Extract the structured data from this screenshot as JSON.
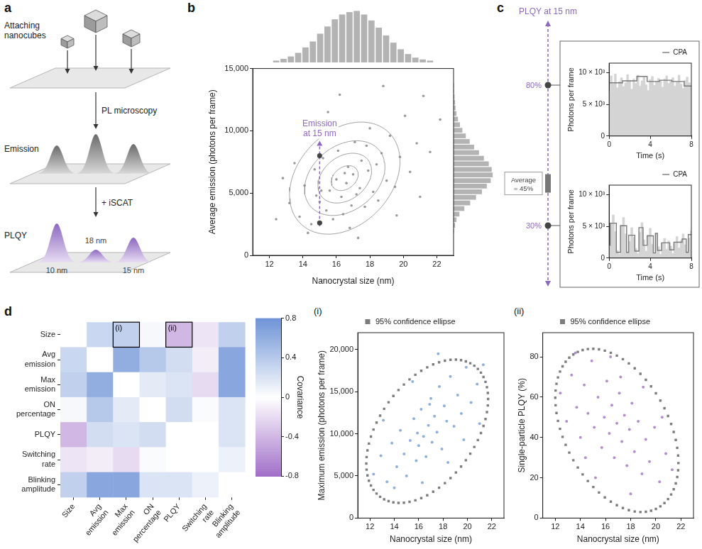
{
  "diagram": {
    "panel": "a",
    "title": "Attaching nanocubes",
    "arrows": [
      "PL microscopy",
      "+ iSCAT"
    ],
    "layers": [
      "Emission",
      "PLQY"
    ],
    "sizes": [
      "10 nm",
      "18 nm",
      "15 nm"
    ]
  },
  "chart_data": [
    {
      "panel": "b",
      "type": "scatter",
      "x_label": "Nanocrystal size (nm)",
      "y_label": "Average emission (photons per frame)",
      "xlim": [
        11,
        23
      ],
      "xticks": [
        12,
        14,
        16,
        18,
        20,
        22
      ],
      "ylim": [
        0,
        15000
      ],
      "yticks": [
        0,
        {
          "value": 5000,
          "label": "5,000"
        },
        {
          "value": 10000,
          "label": "10,000"
        },
        {
          "value": 15000,
          "label": "15,000"
        }
      ],
      "grid": false,
      "color": "#9a9a9a",
      "x": [
        13.2,
        13.8,
        14.1,
        14.5,
        14.7,
        15.0,
        15.2,
        15.4,
        15.6,
        15.8,
        16.0,
        16.1,
        16.3,
        16.4,
        16.6,
        16.7,
        16.8,
        17.0,
        17.1,
        17.2,
        17.4,
        17.5,
        17.7,
        17.9,
        18.0,
        18.2,
        18.4,
        18.5,
        18.7,
        19.0,
        19.2,
        19.5,
        19.8,
        20.1,
        20.4,
        20.8,
        21.2,
        21.6,
        12.4,
        12.8,
        13.5,
        14.0,
        14.3,
        15.5,
        16.2,
        17.3,
        18.8,
        19.6,
        21.0,
        22.2,
        15.1,
        16.9,
        17.8,
        14.8,
        16.5
      ],
      "values": [
        4200,
        3100,
        5600,
        2500,
        6900,
        4300,
        7800,
        3600,
        5200,
        2900,
        6100,
        8400,
        4700,
        3300,
        5800,
        7100,
        2200,
        6500,
        9100,
        4900,
        5400,
        7600,
        3900,
        6800,
        10200,
        5100,
        7300,
        4400,
        8200,
        6000,
        9600,
        5500,
        7900,
        11200,
        6700,
        9000,
        12800,
        8300,
        2900,
        6200,
        7400,
        9800,
        1800,
        11500,
        12900,
        1400,
        13600,
        3200,
        4700,
        10900,
        5200,
        4000,
        8800,
        4800,
        6600
      ],
      "contours": [
        {
          "cx": 16.5,
          "cy": 6200,
          "rx": 0.8,
          "ry": 1000,
          "rho": 0.3
        },
        {
          "cx": 16.5,
          "cy": 6200,
          "rx": 1.6,
          "ry": 2000,
          "rho": 0.3
        },
        {
          "cx": 16.5,
          "cy": 6200,
          "rx": 2.4,
          "ry": 3000,
          "rho": 0.3
        },
        {
          "cx": 16.5,
          "cy": 6200,
          "rx": 3.3,
          "ry": 4500,
          "rho": 0.3
        }
      ],
      "x_histogram": {
        "bins": [
          11.5,
          12,
          12.5,
          13,
          13.5,
          14,
          14.5,
          15,
          15.5,
          16,
          16.5,
          17,
          17.5,
          18,
          18.5,
          19,
          19.5,
          20,
          20.5,
          21,
          21.5,
          22,
          22.5
        ],
        "counts": [
          3,
          6,
          10,
          16,
          25,
          35,
          48,
          60,
          72,
          80,
          84,
          86,
          80,
          70,
          58,
          45,
          33,
          22,
          14,
          8,
          5,
          3
        ],
        "ylim": [
          0,
          90
        ],
        "tick_labels": false,
        "color": "#b3b3b3"
      },
      "y_histogram": {
        "bins": [
          0,
          500,
          1000,
          1500,
          2000,
          2500,
          3000,
          3500,
          4000,
          4500,
          5000,
          5500,
          6000,
          6500,
          7000,
          7500,
          8000,
          8500,
          9000,
          9500,
          10000,
          10500,
          11000,
          11500,
          12000,
          12500,
          13000,
          13500,
          14000,
          14500,
          15000
        ],
        "counts": [
          0,
          0,
          1,
          3,
          6,
          12,
          22,
          34,
          46,
          58,
          68,
          76,
          80,
          78,
          72,
          62,
          52,
          42,
          33,
          25,
          18,
          13,
          9,
          6,
          4,
          3,
          2,
          1,
          1,
          0
        ],
        "xlim": [
          0,
          90
        ],
        "tick_labels": false,
        "color": "#b3b3b3"
      },
      "annotation": {
        "text": "Emission at 15 nm",
        "x": 15,
        "y_range": [
          2300,
          9200
        ],
        "points": [
          8000,
          2600
        ],
        "color": "#8d67c0"
      }
    },
    {
      "panel": "c",
      "type": "line",
      "x_label": "Time (s)",
      "y_label": "Photons per frame",
      "xlim": [
        0,
        8
      ],
      "xticks": [
        0,
        4,
        8
      ],
      "ylim": [
        0,
        11500
      ],
      "yticks": [
        0,
        {
          "value": 5000,
          "label": "5 × 10³"
        },
        {
          "value": 10000,
          "label": "10 × 10³"
        }
      ],
      "grid": false,
      "legend": "top right",
      "x": [
        0,
        0.2,
        0.4,
        0.6,
        0.8,
        1,
        1.2,
        1.4,
        1.6,
        1.8,
        2,
        2.2,
        2.4,
        2.6,
        2.8,
        3,
        3.2,
        3.4,
        3.6,
        3.8,
        4,
        4.2,
        4.4,
        4.6,
        4.8,
        5,
        5.2,
        5.4,
        5.6,
        5.8,
        6,
        6.2,
        6.4,
        6.6,
        6.8,
        7,
        7.2,
        7.4,
        7.6,
        7.8,
        8
      ],
      "series": [
        {
          "type": "area",
          "line_style": "step",
          "color": "#d4d4d4",
          "values": [
            7000,
            9500,
            8200,
            9800,
            7600,
            8600,
            9200,
            7800,
            8400,
            9700,
            8800,
            7400,
            9000,
            8300,
            9600,
            7900,
            8700,
            9300,
            8100,
            7200,
            8900,
            9400,
            8000,
            8600,
            9100,
            8800,
            7700,
            9000,
            9500,
            8300,
            8700,
            9200,
            7900,
            8500,
            9600,
            8200,
            7500,
            8800,
            9300,
            8400,
            7800
          ]
        },
        {
          "name": "CPA",
          "type": "line",
          "line_style": "step",
          "color": "#7a7a7a",
          "values": [
            8400,
            8400,
            8400,
            8400,
            8400,
            8400,
            8400,
            8700,
            8700,
            8700,
            8700,
            8700,
            8700,
            8700,
            9400,
            9400,
            9400,
            9400,
            9400,
            8600,
            8600,
            8600,
            8600,
            8600,
            8600,
            8800,
            8800,
            8800,
            8800,
            8800,
            8800,
            8600,
            8600,
            8600,
            8600,
            8600,
            8600,
            7900,
            7900,
            7900,
            7900
          ]
        }
      ],
      "plqy_scale": {
        "title": "PLQY at 15 nm",
        "color": "#8d67c0",
        "marks": [
          {
            "value": 80,
            "label": "80%"
          },
          {
            "value": 45,
            "label": "Average = 45%"
          },
          {
            "value": 30,
            "label": "30%"
          }
        ]
      }
    },
    {
      "type": "line",
      "x_label": "Time (s)",
      "y_label": "Photons per frame",
      "xlim": [
        0,
        8
      ],
      "xticks": [
        0,
        4,
        8
      ],
      "ylim": [
        0,
        11500
      ],
      "yticks": [
        0,
        {
          "value": 5000,
          "label": "5 × 10³"
        },
        {
          "value": 10000,
          "label": "10 × 10³"
        }
      ],
      "grid": false,
      "legend": "top right",
      "x": [
        0,
        0.2,
        0.4,
        0.6,
        0.8,
        1,
        1.2,
        1.4,
        1.6,
        1.8,
        2,
        2.2,
        2.4,
        2.6,
        2.8,
        3,
        3.2,
        3.4,
        3.6,
        3.8,
        4,
        4.2,
        4.4,
        4.6,
        4.8,
        5,
        5.2,
        5.4,
        5.6,
        5.8,
        6,
        6.2,
        6.4,
        6.6,
        6.8,
        7,
        7.2,
        7.4,
        7.6,
        7.8,
        8
      ],
      "series": [
        {
          "type": "area",
          "line_style": "step",
          "color": "#d4d4d4",
          "values": [
            2000,
            5500,
            6800,
            4200,
            1200,
            600,
            5200,
            6400,
            3800,
            900,
            2600,
            4800,
            3300,
            1500,
            700,
            4100,
            5600,
            2900,
            1100,
            3600,
            4700,
            2200,
            800,
            3900,
            1800,
            600,
            2400,
            3100,
            1400,
            2700,
            1900,
            700,
            2300,
            3400,
            1600,
            2800,
            3800,
            2100,
            900,
            3200,
            4300
          ]
        },
        {
          "name": "CPA",
          "type": "line",
          "line_style": "step",
          "color": "#7a7a7a",
          "values": [
            2000,
            5500,
            5500,
            5500,
            900,
            900,
            5100,
            5100,
            5100,
            900,
            3600,
            3600,
            3600,
            1100,
            1100,
            4800,
            4800,
            2000,
            2000,
            3500,
            3500,
            3500,
            800,
            3900,
            1200,
            1200,
            2400,
            2400,
            2400,
            2400,
            1300,
            1300,
            2500,
            2500,
            2500,
            2500,
            3000,
            3000,
            900,
            3700,
            3700
          ]
        }
      ]
    },
    {
      "panel": "d",
      "type": "heatmap",
      "categories": [
        "Size",
        "Avg emission",
        "Max emission",
        "ON percentage",
        "PLQY",
        "Switching rate",
        "Blinking amplitude"
      ],
      "cells": [
        [
          null,
          0.3,
          0.35,
          0.05,
          -0.4,
          -0.15,
          0.35
        ],
        [
          0.3,
          null,
          0.6,
          0.4,
          0.25,
          -0.1,
          0.65
        ],
        [
          0.35,
          0.6,
          null,
          0.15,
          0.2,
          -0.2,
          0.65
        ],
        [
          0.05,
          0.4,
          0.15,
          null,
          0.25,
          0.03,
          0.2
        ],
        [
          -0.4,
          0.25,
          0.2,
          0.25,
          null,
          0,
          0.2
        ],
        [
          -0.15,
          -0.1,
          -0.2,
          0.03,
          0,
          null,
          0.1
        ],
        [
          0.35,
          0.65,
          0.65,
          0.2,
          0.2,
          0.1,
          null
        ]
      ],
      "colorbar": {
        "label": "Covariance",
        "lim": [
          -0.8,
          0.8
        ],
        "ticks": [
          -0.8,
          -0.4,
          0,
          0.4,
          0.8
        ]
      },
      "highlights": [
        {
          "row": "Size",
          "column": "Max emission",
          "label": "(i)"
        },
        {
          "row": "Size",
          "column": "PLQY",
          "label": "(ii)"
        }
      ]
    },
    {
      "panel": "(i)",
      "type": "scatter",
      "x_label": "Nanocrystal size (nm)",
      "y_label": "Maximum emission (photons per frame)",
      "xlim": [
        11,
        23
      ],
      "xticks": [
        12,
        14,
        16,
        18,
        20,
        22
      ],
      "ylim": [
        0,
        22000
      ],
      "yticks": [
        0,
        {
          "value": 5000,
          "label": "5,000"
        },
        {
          "value": 10000,
          "label": "10,000"
        },
        {
          "value": 15000,
          "label": "15,000"
        },
        {
          "value": 20000,
          "label": "20,000"
        }
      ],
      "grid": false,
      "legend": "top",
      "color": "#8fb0dd",
      "x": [
        12.3,
        12.9,
        13.4,
        13.8,
        14.2,
        14.5,
        14.8,
        15.0,
        15.3,
        15.6,
        15.8,
        16.0,
        16.2,
        16.4,
        16.6,
        16.8,
        17.0,
        17.1,
        17.3,
        17.5,
        17.7,
        17.9,
        18.1,
        18.3,
        18.6,
        18.9,
        19.2,
        19.5,
        19.9,
        20.3,
        20.8,
        21.3,
        13.1,
        14.0,
        15.5,
        16.3,
        17.6,
        18.4,
        19.7,
        21.0,
        16.9,
        15.9
      ],
      "values": [
        5200,
        7400,
        4300,
        8900,
        6100,
        10400,
        7600,
        5000,
        9200,
        11800,
        6800,
        8600,
        12900,
        9700,
        7300,
        11000,
        14200,
        9000,
        12100,
        10200,
        15600,
        8200,
        13300,
        11500,
        16800,
        10900,
        14600,
        12400,
        17900,
        13700,
        15900,
        18200,
        11600,
        3600,
        16200,
        4200,
        19500,
        6600,
        9300,
        11200,
        13500,
        10100
      ],
      "ellipse": {
        "name": "95% confidence ellipse",
        "cx": 16.7,
        "cy": 10300,
        "rx": 5.0,
        "ry": 8500,
        "rho": 0.45,
        "color": "#7d7d7d",
        "marker": "square"
      }
    },
    {
      "panel": "(ii)",
      "type": "scatter",
      "x_label": "Nanocrystal size (nm)",
      "y_label": "Single-particle PLQY (%)",
      "xlim": [
        11,
        23
      ],
      "xticks": [
        12,
        14,
        16,
        18,
        20,
        22
      ],
      "ylim": [
        0,
        92
      ],
      "yticks": [
        0,
        20,
        40,
        60,
        80
      ],
      "grid": false,
      "legend": "top",
      "color": "#b48fd0",
      "x": [
        12.4,
        12.9,
        13.3,
        13.7,
        14.0,
        14.3,
        14.6,
        14.9,
        15.1,
        15.4,
        15.7,
        15.9,
        16.1,
        16.3,
        16.5,
        16.7,
        16.9,
        17.1,
        17.3,
        17.5,
        17.7,
        17.9,
        18.1,
        18.3,
        18.6,
        18.9,
        19.2,
        19.5,
        19.9,
        20.3,
        20.8,
        21.3,
        13.6,
        15.2,
        16.4,
        18.0,
        19.0,
        20.5,
        14.4,
        17.2
      ],
      "values": [
        62,
        48,
        71,
        55,
        40,
        66,
        52,
        78,
        45,
        60,
        35,
        50,
        68,
        42,
        56,
        30,
        47,
        62,
        38,
        51,
        26,
        44,
        57,
        33,
        48,
        22,
        39,
        28,
        45,
        18,
        32,
        24,
        82,
        20,
        80,
        12,
        65,
        50,
        30,
        70
      ],
      "ellipse": {
        "name": "95% confidence ellipse",
        "cx": 16.9,
        "cy": 43.5,
        "rx": 4.9,
        "ry": 40.5,
        "rho": -0.4,
        "color": "#7d7d7d",
        "marker": "square"
      }
    }
  ]
}
